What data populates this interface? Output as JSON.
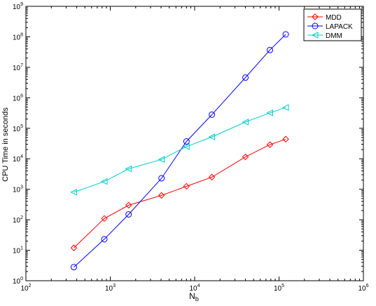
{
  "chart_data": {
    "type": "line",
    "title": "",
    "xlabel": "N",
    "xlabel_subscript": "b",
    "ylabel": "CPU Time in seconds",
    "xscale": "log",
    "yscale": "log",
    "xlim": [
      100,
      1000000
    ],
    "ylim": [
      1,
      1000000000
    ],
    "x_tick_values": [
      100,
      1000,
      10000,
      100000,
      1000000
    ],
    "x_tick_labels": [
      {
        "base": "10",
        "exp": "2"
      },
      {
        "base": "10",
        "exp": "3"
      },
      {
        "base": "10",
        "exp": "4"
      },
      {
        "base": "10",
        "exp": "5"
      },
      {
        "base": "10",
        "exp": "6"
      }
    ],
    "y_tick_values": [
      1,
      10,
      100,
      1000,
      10000,
      100000,
      1000000,
      10000000,
      100000000,
      1000000000
    ],
    "y_tick_labels": [
      {
        "base": "10",
        "exp": "0"
      },
      {
        "base": "10",
        "exp": "1"
      },
      {
        "base": "10",
        "exp": "2"
      },
      {
        "base": "10",
        "exp": "3"
      },
      {
        "base": "10",
        "exp": "4"
      },
      {
        "base": "10",
        "exp": "5"
      },
      {
        "base": "10",
        "exp": "6"
      },
      {
        "base": "10",
        "exp": "7"
      },
      {
        "base": "10",
        "exp": "8"
      },
      {
        "base": "10",
        "exp": "9"
      }
    ],
    "grid": false,
    "legend_position": "top-right",
    "series": [
      {
        "name": "MDD",
        "color": "#ff0000",
        "marker": "diamond",
        "x": [
          370,
          850,
          1650,
          4050,
          8000,
          16000,
          40000,
          78000,
          120000
        ],
        "y": [
          12,
          110,
          300,
          630,
          1250,
          2500,
          11500,
          29000,
          44000
        ]
      },
      {
        "name": "LAPACK",
        "color": "#0000ff",
        "marker": "circle",
        "x": [
          370,
          850,
          1650,
          4050,
          8000,
          16000,
          40000,
          78000,
          120000
        ],
        "y": [
          2.8,
          23,
          150,
          2300,
          37000,
          280000,
          4600000,
          37000000,
          120000000
        ]
      },
      {
        "name": "DMM",
        "color": "#00cccc",
        "marker": "triangle-left",
        "x": [
          370,
          850,
          1650,
          4050,
          8000,
          16000,
          40000,
          78000,
          120000
        ],
        "y": [
          800,
          1800,
          4700,
          9500,
          25000,
          52000,
          160000,
          320000,
          480000
        ]
      }
    ]
  }
}
